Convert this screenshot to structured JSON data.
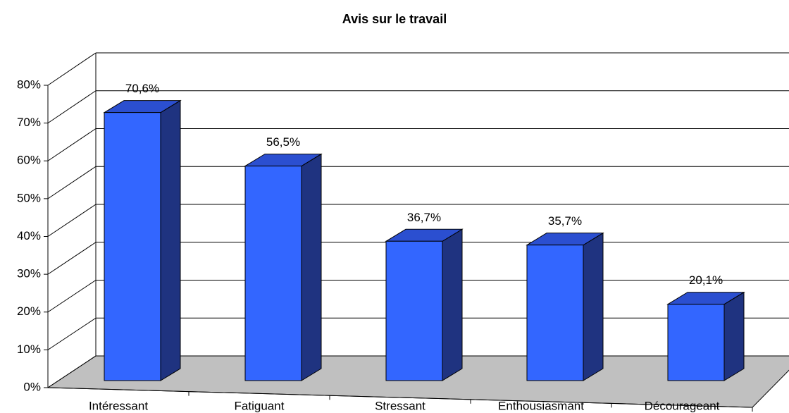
{
  "chart_data": {
    "type": "bar3d",
    "title": "Avis sur le travail",
    "categories": [
      "Intéressant",
      "Fatiguant",
      "Stressant",
      "Enthousiasmant",
      "Décourageant"
    ],
    "values": [
      70.6,
      56.5,
      36.7,
      35.7,
      20.1
    ],
    "value_labels": [
      "70,6%",
      "56,5%",
      "36,7%",
      "35,7%",
      "20,1%"
    ],
    "color": "#3366ff",
    "ylim": [
      0,
      80
    ],
    "yticks": [
      {
        "value": 0,
        "label": "0%"
      },
      {
        "value": 10,
        "label": "10%"
      },
      {
        "value": 20,
        "label": "20%"
      },
      {
        "value": 30,
        "label": "30%"
      },
      {
        "value": 40,
        "label": "40%"
      },
      {
        "value": 50,
        "label": "50%"
      },
      {
        "value": 60,
        "label": "60%"
      },
      {
        "value": 70,
        "label": "70%"
      },
      {
        "value": 80,
        "label": "80%"
      }
    ],
    "grid": true
  }
}
